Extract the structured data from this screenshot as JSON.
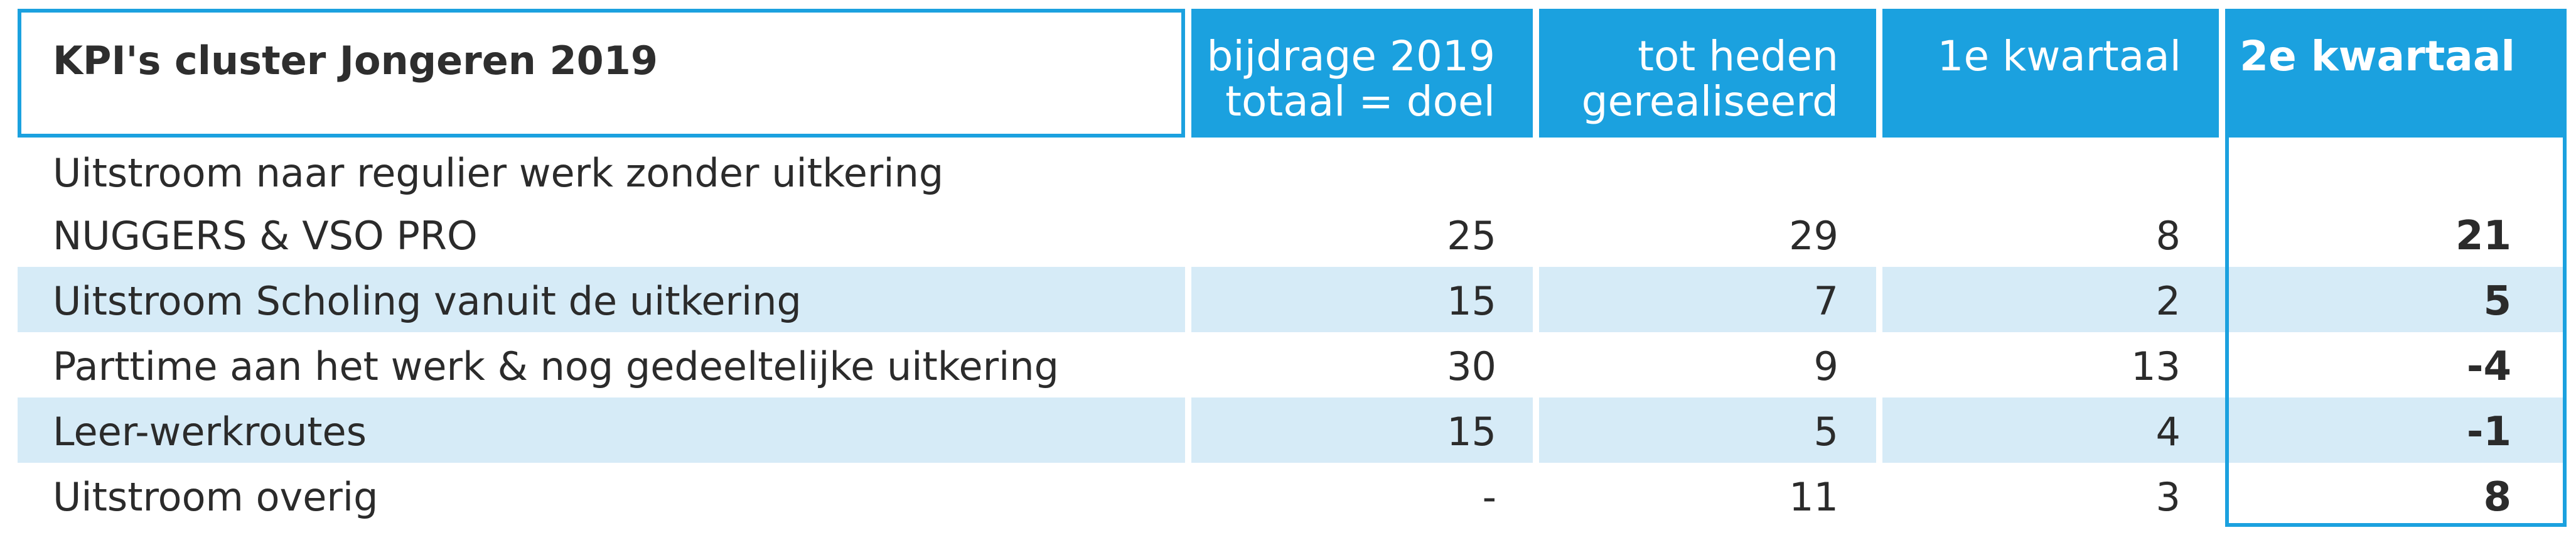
{
  "header": {
    "title": "KPI's cluster Jongeren 2019",
    "col1_line1": "bijdrage 2019",
    "col1_line2": "totaal = doel",
    "col2_line1": "tot heden",
    "col2_line2": "gerealiseerd",
    "col3": "1e kwartaal",
    "col4": "2e kwartaal"
  },
  "rows": [
    {
      "label_line1": "Uitstroom naar regulier werk zonder uitkering",
      "label_line2": "NUGGERS & VSO PRO",
      "bijdrage": "25",
      "tot_heden": "29",
      "q1": "8",
      "q2": "21"
    },
    {
      "label": "Uitstroom Scholing vanuit de uitkering",
      "bijdrage": "15",
      "tot_heden": "7",
      "q1": "2",
      "q2": "5"
    },
    {
      "label": "Parttime aan het werk & nog gedeeltelijke uitkering",
      "bijdrage": "30",
      "tot_heden": "9",
      "q1": "13",
      "q2": "-4"
    },
    {
      "label": "Leer-werkroutes",
      "bijdrage": "15",
      "tot_heden": "5",
      "q1": "4",
      "q2": "-1"
    },
    {
      "label": "Uitstroom overig",
      "bijdrage": "-",
      "tot_heden": "11",
      "q1": "3",
      "q2": "8"
    }
  ],
  "colors": {
    "accent": "#1ba1df",
    "row_shade": "#d6ebf7"
  }
}
